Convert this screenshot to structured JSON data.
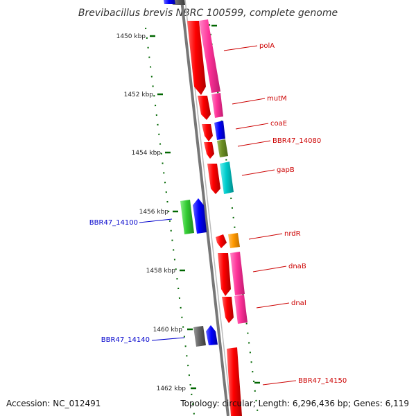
{
  "title": "Brevibacillus brevis NBRC 100599, complete genome",
  "footer": {
    "accession": "Accession: NC_012491",
    "topology": "Topology: circular; Length: 6,296,436 bp; Genes: 6,119"
  },
  "ticks": [
    "1450 kbp",
    "1452 kbp",
    "1454 kbp",
    "1456 kbp",
    "1458 kbp",
    "1460 kbp",
    "1462 kbp"
  ],
  "genes": [
    {
      "label": "polA",
      "color": "#cc0000"
    },
    {
      "label": "mutM",
      "color": "#cc0000"
    },
    {
      "label": "coaE",
      "color": "#cc0000"
    },
    {
      "label": "BBR47_14080",
      "color": "#cc0000"
    },
    {
      "label": "gapB",
      "color": "#cc0000"
    },
    {
      "label": "BBR47_14100",
      "color": "#0000cc"
    },
    {
      "label": "nrdR",
      "color": "#cc0000"
    },
    {
      "label": "dnaB",
      "color": "#cc0000"
    },
    {
      "label": "dnaI",
      "color": "#cc0000"
    },
    {
      "label": "BBR47_14140",
      "color": "#0000cc"
    },
    {
      "label": "BBR47_14150",
      "color": "#cc0000"
    }
  ],
  "colors": {
    "strand_forward": "#ff0000",
    "cog_magenta": "#ff3399",
    "cog_blue": "#0000ff",
    "cog_olive": "#6b8e23",
    "cog_cyan": "#00cccc",
    "cog_orange": "#ff9900",
    "cog_green": "#33cc33",
    "cog_gray": "#666666",
    "backbone": "#888888",
    "tick_green": "#006600"
  }
}
